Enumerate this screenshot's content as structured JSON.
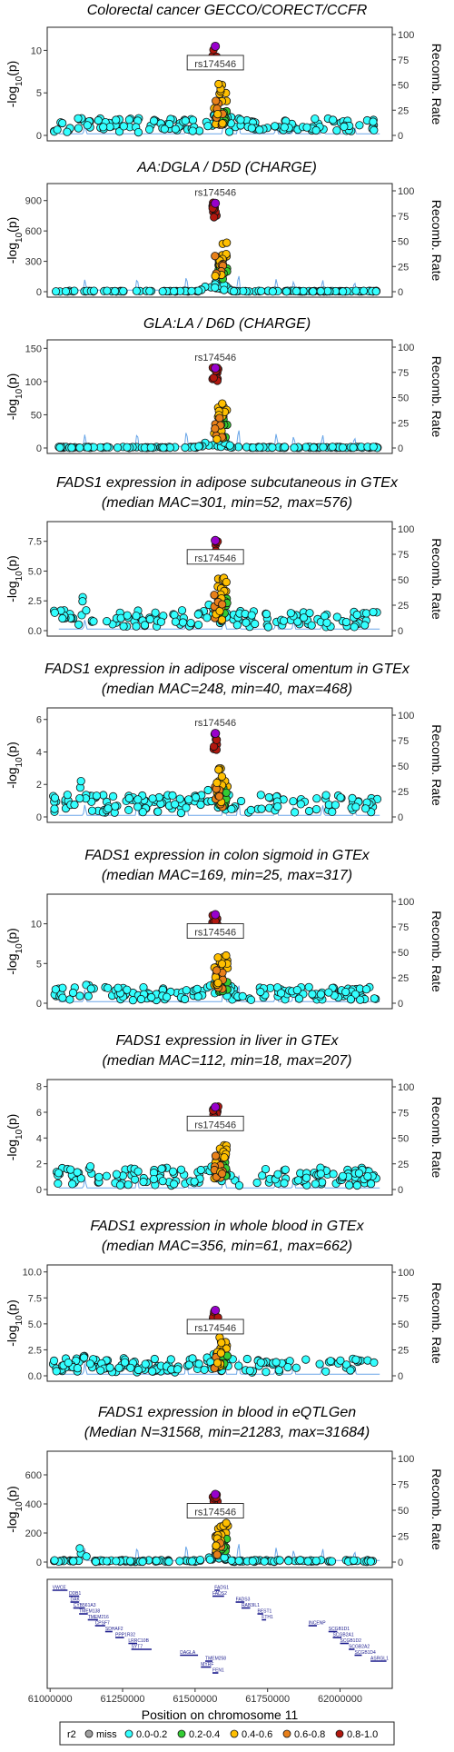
{
  "chart_data": {
    "type": "scatter",
    "x_axis": {
      "label": "Position on chromosome 11",
      "range": [
        60990000,
        62180000
      ],
      "ticks": [
        "61000000",
        "61250000",
        "61500000",
        "61750000",
        "62000000"
      ]
    },
    "right_axis": {
      "label": "Recomb. Rate",
      "ticks": [
        "0",
        "25",
        "50",
        "75",
        "100"
      ],
      "range": [
        0,
        100
      ]
    },
    "lead_variant": {
      "label": "rs174546",
      "position": 61569830
    },
    "legend": {
      "title": "r2",
      "items": [
        {
          "label": "miss",
          "color": "#a0a0a0"
        },
        {
          "label": "0.0-0.2",
          "color": "#33ffff"
        },
        {
          "label": "0.2-0.4",
          "color": "#33cc33"
        },
        {
          "label": "0.4-0.6",
          "color": "#ffbf00"
        },
        {
          "label": "0.6-0.8",
          "color": "#e8801a"
        },
        {
          "label": "0.8-1.0",
          "color": "#b2180f"
        }
      ],
      "lead_color": "#9900cc"
    },
    "panels": [
      {
        "title": "Colorectal cancer GECCO/CORECT/CCFR",
        "ylabel": "-log10(p)",
        "ylim": [
          0,
          12.5
        ],
        "yticks": [
          0,
          5,
          10
        ],
        "ytick_labels": [
          "0",
          "5",
          "10"
        ],
        "peak": 10.8,
        "baseline": 1.2,
        "boxed_label": true
      },
      {
        "title": "AA:DGLA / D5D (CHARGE)",
        "ylabel": "-log10(p)",
        "ylim": [
          0,
          1050
        ],
        "yticks": [
          0,
          300,
          600,
          900
        ],
        "ytick_labels": [
          "0",
          "300",
          "600",
          "900"
        ],
        "peak": 900,
        "baseline": 5,
        "boxed_label": false
      },
      {
        "title": "GLA:LA / D6D (CHARGE)",
        "ylabel": "-log10(p)",
        "ylim": [
          0,
          160
        ],
        "yticks": [
          0,
          50,
          100,
          150
        ],
        "ytick_labels": [
          "0",
          "50",
          "100",
          "150"
        ],
        "peak": 124,
        "baseline": 1,
        "boxed_label": false
      },
      {
        "title": "FADS1 expression in adipose subcutaneous in GTEx",
        "subtitle": "(median MAC=301, min=52, max=576)",
        "ylabel": "-log10(p)",
        "ylim": [
          0,
          9
        ],
        "yticks": [
          0,
          2.5,
          5,
          7.5
        ],
        "ytick_labels": [
          "0.0",
          "2.5",
          "5.0",
          "7.5"
        ],
        "peak": 7.8,
        "baseline": 1.0,
        "boxed_label": true
      },
      {
        "title": "FADS1 expression in adipose visceral omentum in GTEx",
        "subtitle": "(median MAC=248, min=40, max=468)",
        "ylabel": "-log10(p)",
        "ylim": [
          0,
          6.6
        ],
        "yticks": [
          0,
          2,
          4,
          6
        ],
        "ytick_labels": [
          "0",
          "2",
          "4",
          "6"
        ],
        "peak": 5.3,
        "baseline": 0.8,
        "boxed_label": false
      },
      {
        "title": "FADS1 expression in colon sigmoid in GTEx",
        "subtitle": "(median MAC=169, min=25, max=317)",
        "ylabel": "-log10(p)",
        "ylim": [
          0,
          13.5
        ],
        "yticks": [
          0,
          5,
          10
        ],
        "ytick_labels": [
          "0",
          "5",
          "10"
        ],
        "peak": 11.5,
        "baseline": 1.2,
        "boxed_label": true
      },
      {
        "title": "FADS1 expression in liver in GTEx",
        "subtitle": "(median MAC=112, min=18, max=207)",
        "ylabel": "-log10(p)",
        "ylim": [
          0,
          8.4
        ],
        "yticks": [
          0,
          2,
          4,
          6,
          8
        ],
        "ytick_labels": [
          "0",
          "2",
          "4",
          "6",
          "8"
        ],
        "peak": 6.6,
        "baseline": 1.0,
        "boxed_label": true
      },
      {
        "title": "FADS1 expression in whole blood in GTEx",
        "subtitle": "(median MAC=356, min=61, max=662)",
        "ylabel": "-log10(p)",
        "ylim": [
          0,
          10.5
        ],
        "yticks": [
          0,
          2.5,
          5,
          7.5,
          10
        ],
        "ytick_labels": [
          "0.0",
          "2.5",
          "5.0",
          "7.5",
          "10.0"
        ],
        "peak": 6.5,
        "baseline": 1.0,
        "boxed_label": true
      },
      {
        "title": "FADS1 expression in blood in eQTLGen",
        "subtitle": "(Median N=31568, min=21283, max=31684)",
        "ylabel": "-log10(p)",
        "ylim": [
          0,
          750
        ],
        "yticks": [
          0,
          200,
          400,
          600
        ],
        "ytick_labels": [
          "0",
          "200",
          "400",
          "600"
        ],
        "peak": 480,
        "baseline": 8,
        "boxed_label": true
      }
    ],
    "genes": [
      {
        "name": "VWCE",
        "start": 61008000,
        "end": 61060000,
        "row": 0
      },
      {
        "name": "DDB1",
        "start": 61065000,
        "end": 61100000,
        "row": 1
      },
      {
        "name": "DAK",
        "start": 61070000,
        "end": 61100000,
        "row": 2
      },
      {
        "name": "CYB561A3",
        "start": 61080000,
        "end": 61120000,
        "row": 3
      },
      {
        "name": "TMEM138",
        "start": 61100000,
        "end": 61130000,
        "row": 4
      },
      {
        "name": "TMEM216",
        "start": 61130000,
        "end": 61165000,
        "row": 5
      },
      {
        "name": "CPSF7",
        "start": 61155000,
        "end": 61190000,
        "row": 6
      },
      {
        "name": "SDHAF2",
        "start": 61190000,
        "end": 61215000,
        "row": 7
      },
      {
        "name": "PPP1R32",
        "start": 61225000,
        "end": 61255000,
        "row": 8
      },
      {
        "name": "LRRC10B",
        "start": 61270000,
        "end": 61300000,
        "row": 9
      },
      {
        "name": "SYT7",
        "start": 61280000,
        "end": 61350000,
        "row": 10
      },
      {
        "name": "DAGLA",
        "start": 61448000,
        "end": 61510000,
        "row": 11
      },
      {
        "name": "TMEM258",
        "start": 61535000,
        "end": 61560000,
        "row": 12
      },
      {
        "name": "MYRF",
        "start": 61520000,
        "end": 61555000,
        "row": 13
      },
      {
        "name": "FEN1",
        "start": 61560000,
        "end": 61580000,
        "row": 14
      },
      {
        "name": "FADS1",
        "start": 61567000,
        "end": 61585000,
        "row": 0
      },
      {
        "name": "FADS2",
        "start": 61560000,
        "end": 61600000,
        "row": 1
      },
      {
        "name": "FADS3",
        "start": 61640000,
        "end": 61670000,
        "row": 2
      },
      {
        "name": "RAB3IL1",
        "start": 61660000,
        "end": 61690000,
        "row": 3
      },
      {
        "name": "BEST1",
        "start": 61715000,
        "end": 61735000,
        "row": 4
      },
      {
        "name": "FTH1",
        "start": 61730000,
        "end": 61745000,
        "row": 5
      },
      {
        "name": "INCENP",
        "start": 61891000,
        "end": 61920000,
        "row": 6
      },
      {
        "name": "SCGB1D1",
        "start": 61960000,
        "end": 61990000,
        "row": 7
      },
      {
        "name": "SCGB2A1",
        "start": 61975000,
        "end": 62005000,
        "row": 8
      },
      {
        "name": "SCGB1D2",
        "start": 62000000,
        "end": 62030000,
        "row": 9
      },
      {
        "name": "SCGB2A2",
        "start": 62030000,
        "end": 62050000,
        "row": 10
      },
      {
        "name": "SCGB1D4",
        "start": 62050000,
        "end": 62075000,
        "row": 11
      },
      {
        "name": "ASRGL1",
        "start": 62105000,
        "end": 62160000,
        "row": 12
      }
    ]
  }
}
